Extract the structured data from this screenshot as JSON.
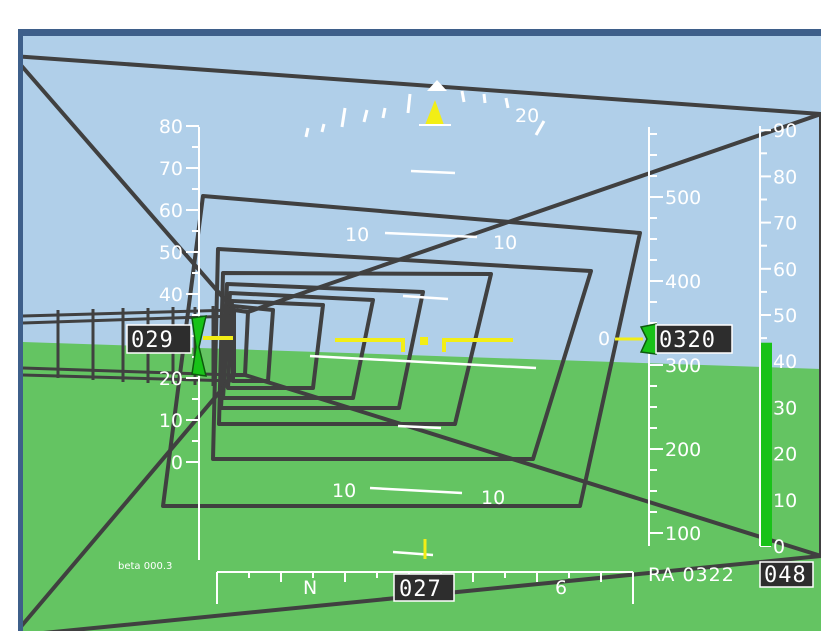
{
  "colors": {
    "sky": "#b0cfe9",
    "ground": "#64c462",
    "tunnel": "#404040",
    "hud": "#ffffff",
    "cue": "#f2ee16",
    "marker_green": "#18c218",
    "frame": "#3e5f8a"
  },
  "airspeed_tape": {
    "ticks": [
      "0",
      "10",
      "20",
      "30",
      "40",
      "50",
      "60",
      "70",
      "80"
    ],
    "readout": "029"
  },
  "altitude_tape": {
    "ticks": [
      "100",
      "200",
      "300",
      "400",
      "500"
    ],
    "readout": "0320",
    "bug_label": "0"
  },
  "vertical_scale": {
    "ticks": [
      "0",
      "10",
      "20",
      "30",
      "40",
      "50",
      "60",
      "70",
      "80",
      "90"
    ],
    "level": 44,
    "readout": "048"
  },
  "heading": {
    "readout": "027",
    "labels": [
      "N",
      "6"
    ]
  },
  "bank_scale_label": "20",
  "pitch_ladder": {
    "upper_left": "10",
    "upper_right": "10",
    "lower_left": "10",
    "lower_right": "10"
  },
  "radar_altitude": "RA 0322",
  "beta": "beta 000.3",
  "icons": [
    "flight-path-marker-icon",
    "sky-pointer-icon",
    "bank-pointer-icon"
  ]
}
